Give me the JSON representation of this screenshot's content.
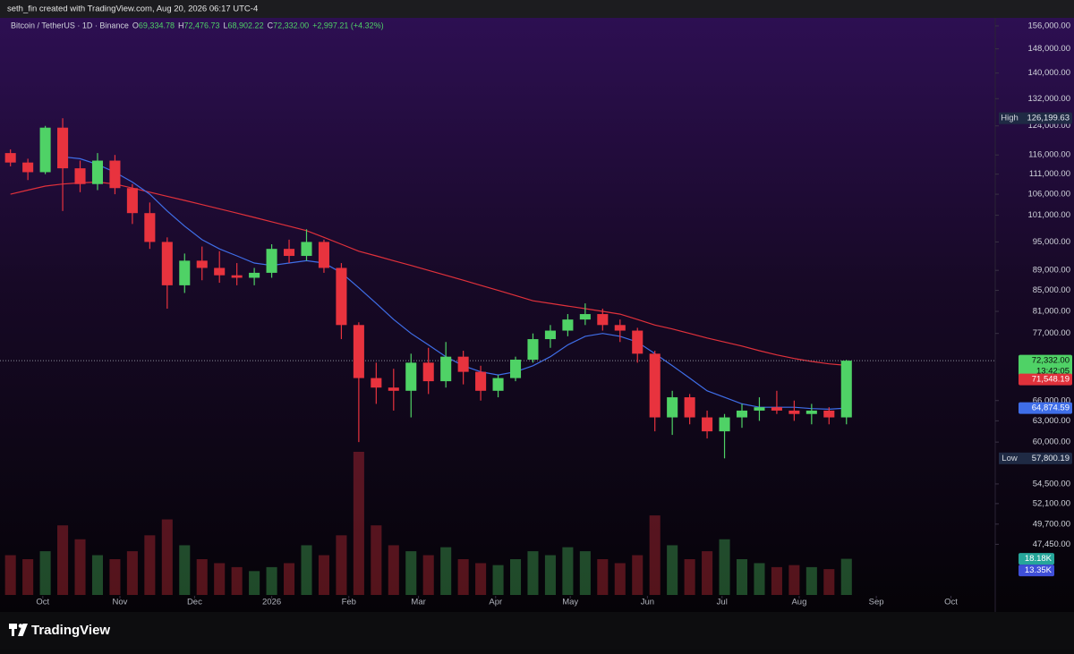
{
  "header": {
    "caption": "seth_fin created with TradingView.com, Aug 20, 2026 06:17 UTC-4"
  },
  "footer": {
    "brand": "TradingView"
  },
  "chart_data": {
    "type": "candlestick",
    "symbol": "Bitcoin / TetherUS · 1D · Binance",
    "ohlc_legend": [
      {
        "key": "O",
        "value": 69334.78,
        "label": "69,334.78"
      },
      {
        "key": "H",
        "value": 72476.73,
        "label": "72,476.73"
      },
      {
        "key": "L",
        "value": 68902.22,
        "label": "68,902.22"
      },
      {
        "key": "C",
        "value": 72332.0,
        "label": "72,332.00"
      }
    ],
    "change": "+2,997.21 (+4.32%)",
    "log_scale": true,
    "up_color": "#4fd266",
    "down_color": "#e8333e",
    "xlim": [
      -3.2,
      396.8
    ],
    "xticks": [
      {
        "value": 14,
        "label": "Oct"
      },
      {
        "value": 45,
        "label": "Nov"
      },
      {
        "value": 75,
        "label": "Dec"
      },
      {
        "value": 106,
        "label": "2026"
      },
      {
        "value": 137,
        "label": "Feb"
      },
      {
        "value": 165,
        "label": "Mar"
      },
      {
        "value": 196,
        "label": "Apr"
      },
      {
        "value": 226,
        "label": "May"
      },
      {
        "value": 257,
        "label": "Jun"
      },
      {
        "value": 287,
        "label": "Jul"
      },
      {
        "value": 318,
        "label": "Aug"
      },
      {
        "value": 349,
        "label": "Sep"
      },
      {
        "value": 379,
        "label": "Oct"
      }
    ],
    "ylim": [
      42240,
      158900
    ],
    "yticks": [
      {
        "value": 156000,
        "label": "156,000.00"
      },
      {
        "value": 148000,
        "label": "148,000.00"
      },
      {
        "value": 140000,
        "label": "140,000.00"
      },
      {
        "value": 132000,
        "label": "132,000.00"
      },
      {
        "value": 124000,
        "label": "124,000.00"
      },
      {
        "value": 116000,
        "label": "116,000.00"
      },
      {
        "value": 111000,
        "label": "111,000.00"
      },
      {
        "value": 106000,
        "label": "106,000.00"
      },
      {
        "value": 101000,
        "label": "101,000.00"
      },
      {
        "value": 95000,
        "label": "95,000.00"
      },
      {
        "value": 89000,
        "label": "89,000.00"
      },
      {
        "value": 85000,
        "label": "85,000.00"
      },
      {
        "value": 81000,
        "label": "81,000.00"
      },
      {
        "value": 77000,
        "label": "77,000.00"
      },
      {
        "value": 66000,
        "label": "66,000.00"
      },
      {
        "value": 63000,
        "label": "63,000.00"
      },
      {
        "value": 60000,
        "label": "60,000.00"
      },
      {
        "value": 54500,
        "label": "54,500.00"
      },
      {
        "value": 52100,
        "label": "52,100.00"
      },
      {
        "value": 49700,
        "label": "49,700.00"
      },
      {
        "value": 47450,
        "label": "47,450.00"
      }
    ],
    "x": [
      1,
      8,
      15,
      22,
      29,
      36,
      43,
      50,
      57,
      64,
      71,
      78,
      85,
      92,
      99,
      106,
      113,
      120,
      127,
      134,
      141,
      148,
      155,
      162,
      169,
      176,
      183,
      190,
      197,
      204,
      211,
      218,
      225,
      232,
      239,
      246,
      253,
      260,
      267,
      274,
      281,
      288,
      295,
      302,
      309,
      316,
      323,
      330,
      337
    ],
    "open": [
      116500,
      114000,
      111500,
      123500,
      112500,
      108500,
      114500,
      107500,
      101500,
      95000,
      86000,
      91000,
      89500,
      88000,
      87500,
      88500,
      93500,
      92000,
      95000,
      89500,
      78500,
      69500,
      68000,
      67500,
      72000,
      69000,
      73000,
      70500,
      67500,
      69500,
      72500,
      76000,
      77500,
      79500,
      80500,
      78500,
      77500,
      73500,
      63500,
      66500,
      63500,
      61500,
      63500,
      64500,
      65000,
      64500,
      64000,
      64500,
      63500
    ],
    "high": [
      117500,
      115000,
      124000,
      126199.63,
      114500,
      116500,
      116000,
      108500,
      104000,
      96000,
      92500,
      94000,
      93000,
      90500,
      89500,
      94500,
      95500,
      97800,
      95500,
      90500,
      79000,
      72000,
      71000,
      73500,
      74500,
      75500,
      74000,
      71500,
      70000,
      73000,
      77000,
      78500,
      80500,
      82500,
      81500,
      79500,
      78000,
      74000,
      67500,
      67000,
      64500,
      64000,
      65500,
      66500,
      67500,
      66000,
      65500,
      65000,
      72476.73
    ],
    "low": [
      113000,
      109500,
      111000,
      102000,
      106500,
      107000,
      106000,
      99000,
      93500,
      81500,
      84500,
      87000,
      86500,
      86000,
      86000,
      87500,
      90500,
      91000,
      88500,
      76000,
      60000,
      65500,
      64500,
      63500,
      67000,
      68000,
      68500,
      66000,
      66500,
      69000,
      72000,
      74500,
      76500,
      78500,
      77500,
      75500,
      72000,
      61500,
      61000,
      62500,
      60500,
      57800.19,
      62000,
      63000,
      64000,
      63000,
      62500,
      62500,
      62500
    ],
    "close": [
      114000,
      111500,
      123500,
      112500,
      108500,
      114500,
      107500,
      101500,
      95000,
      86000,
      91000,
      89500,
      88000,
      87500,
      88500,
      93500,
      92000,
      95000,
      89500,
      78500,
      69500,
      68000,
      67500,
      72000,
      69000,
      73000,
      70500,
      67500,
      69500,
      72500,
      76000,
      77500,
      79500,
      80500,
      78500,
      77500,
      73500,
      63500,
      66500,
      63500,
      61500,
      63500,
      64500,
      65000,
      64500,
      64000,
      64500,
      63500,
      72332.0
    ],
    "volume": [
      20,
      18,
      22,
      35,
      28,
      20,
      18,
      22,
      30,
      38,
      25,
      18,
      16,
      14,
      12,
      14,
      16,
      25,
      20,
      30,
      72,
      35,
      25,
      22,
      20,
      24,
      18,
      16,
      15,
      18,
      22,
      20,
      24,
      22,
      18,
      16,
      20,
      40,
      25,
      18,
      22,
      28,
      18,
      16,
      14,
      15,
      14,
      13,
      18.18
    ],
    "volume_ylim": [
      0,
      90
    ],
    "moving_averages": [
      {
        "color": "#e0313b",
        "values": [
          106000,
          107000,
          108000,
          108500,
          108800,
          109000,
          108500,
          107500,
          106500,
          105500,
          104500,
          103500,
          102500,
          101500,
          100500,
          99500,
          98500,
          97500,
          96000,
          94500,
          93000,
          92000,
          91000,
          90000,
          89000,
          88000,
          87000,
          86000,
          85000,
          84000,
          83000,
          82500,
          82000,
          81500,
          81000,
          80500,
          79500,
          78500,
          77800,
          77000,
          76200,
          75500,
          74800,
          74000,
          73300,
          72700,
          72200,
          71800,
          71548.19
        ]
      },
      {
        "color": "#3f6ee8",
        "values": [
          null,
          null,
          null,
          115500,
          115000,
          113500,
          111500,
          109000,
          106000,
          102000,
          98500,
          95500,
          93500,
          92000,
          90500,
          90000,
          90500,
          91000,
          90500,
          88500,
          85500,
          82500,
          79500,
          77000,
          75000,
          73000,
          71500,
          70500,
          70000,
          70500,
          71500,
          73000,
          75000,
          76500,
          77000,
          76500,
          75500,
          73500,
          71500,
          69500,
          67500,
          66500,
          65500,
          65000,
          65000,
          65000,
          64800,
          64700,
          64874.59
        ]
      }
    ],
    "price_labels": {
      "high": {
        "tag": "High",
        "value": 126199.63,
        "label": "126,199.63"
      },
      "low": {
        "tag": "Low",
        "value": 57800.19,
        "label": "57,800.19"
      },
      "last": {
        "value": 72332.0,
        "label": "72,332.00",
        "countdown": "13:42:05",
        "color": "#4fd266"
      },
      "ma_labels": [
        {
          "value": 71548.19,
          "label": "71,548.19",
          "color": "#e0313b"
        },
        {
          "value": 64874.59,
          "label": "64,874.59",
          "color": "#3f6ee8"
        }
      ]
    },
    "volume_labels": [
      {
        "value": 18.18,
        "label": "18.18K",
        "color": "#26a69a"
      },
      {
        "value": 13.35,
        "label": "13.35K",
        "color": "#3f4fd8"
      }
    ]
  }
}
